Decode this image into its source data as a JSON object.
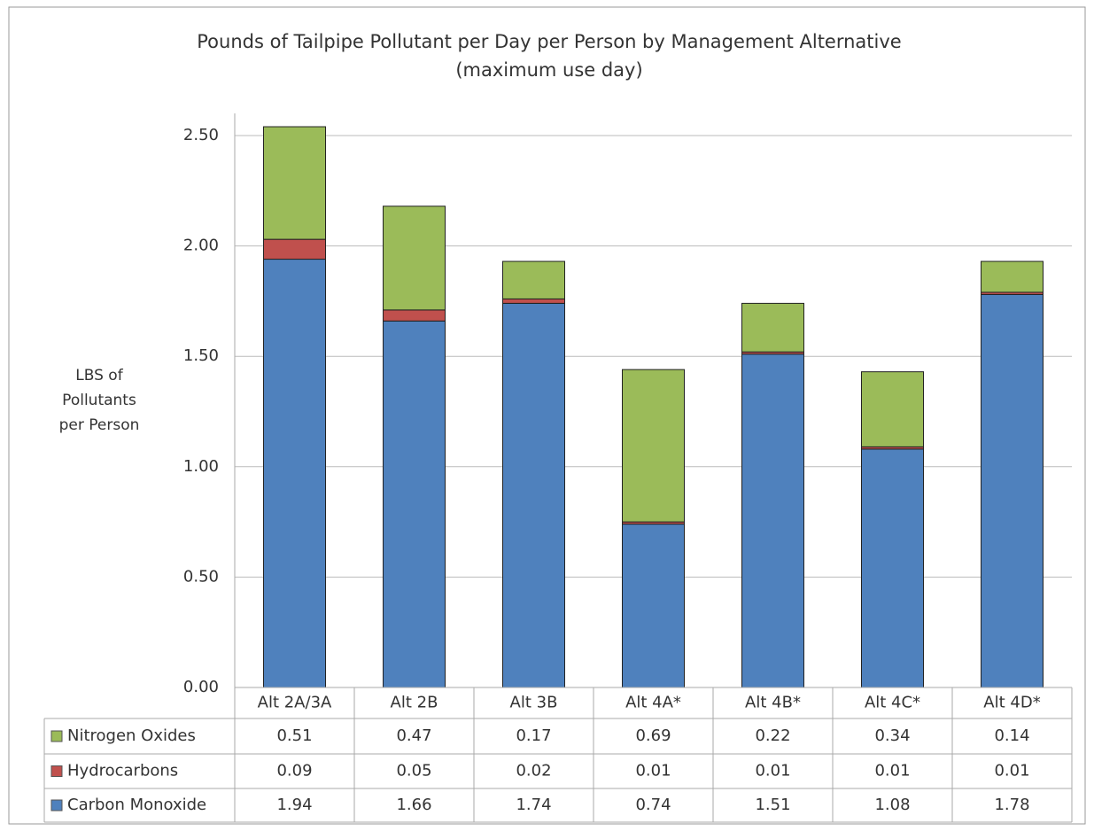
{
  "chart_data": {
    "type": "stacked_bar",
    "title": "Pounds of Tailpipe Pollutant per Day per Person by Management Alternative",
    "subtitle": "(maximum use day)",
    "y_label": "LBS of Pollutants per Person",
    "categories": [
      "Alt 2A/3A",
      "Alt 2B",
      "Alt 3B",
      "Alt 4A*",
      "Alt 4B*",
      "Alt 4C*",
      "Alt 4D*"
    ],
    "series": [
      {
        "name": "Carbon Monoxide",
        "color": "#4f81bd",
        "values": [
          1.94,
          1.66,
          1.74,
          0.74,
          1.51,
          1.08,
          1.78
        ]
      },
      {
        "name": "Hydrocarbons",
        "color": "#c0504d",
        "values": [
          0.09,
          0.05,
          0.02,
          0.01,
          0.01,
          0.01,
          0.01
        ]
      },
      {
        "name": "Nitrogen Oxides",
        "color": "#9bbb59",
        "values": [
          0.51,
          0.47,
          0.17,
          0.69,
          0.22,
          0.34,
          0.14
        ]
      }
    ],
    "ylim": [
      0,
      2.5
    ],
    "yticks": [
      {
        "value": 0,
        "label": "0.00"
      },
      {
        "value": 0.5,
        "label": "0.50"
      },
      {
        "value": 1,
        "label": "1.00"
      },
      {
        "value": 1.5,
        "label": "1.50"
      },
      {
        "value": 2,
        "label": "2.00"
      },
      {
        "value": 2.5,
        "label": "2.50"
      }
    ],
    "grid": true,
    "data_table": true
  }
}
